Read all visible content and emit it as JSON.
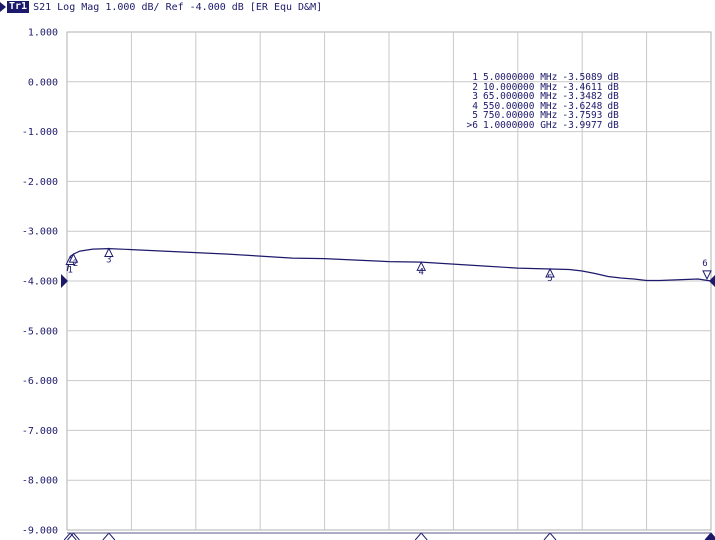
{
  "header": {
    "trace_id": "Tr1",
    "parameter": "S21",
    "format": "Log Mag",
    "scale": "1.000 dB/",
    "reference": "Ref -4.000 dB",
    "mode": "[ER Equ D&M]"
  },
  "colors": {
    "trace": "#1d1a6b",
    "grid": "#c9c9c9",
    "axis_text": "#1d1a6b"
  },
  "marker_table": [
    {
      "id": "1",
      "freq": "5.0000000 MHz",
      "value": "-3.5089",
      "unit": "dB"
    },
    {
      "id": "2",
      "freq": "10.000000 MHz",
      "value": "-3.4611",
      "unit": "dB"
    },
    {
      "id": "3",
      "freq": "65.000000 MHz",
      "value": "-3.3482",
      "unit": "dB"
    },
    {
      "id": "4",
      "freq": "550.00000 MHz",
      "value": "-3.6248",
      "unit": "dB"
    },
    {
      "id": "5",
      "freq": "750.00000 MHz",
      "value": "-3.7593",
      "unit": "dB"
    },
    {
      "id": ">6",
      "freq": "1.0000000 GHz",
      "value": "-3.9977",
      "unit": "dB"
    }
  ],
  "chart_data": {
    "type": "line",
    "title": "S21 Log Mag 1.000 dB/ Ref -4.000 dB [ER Equ D&M]",
    "xlabel": "",
    "ylabel": "",
    "xlim": [
      0,
      1000
    ],
    "ylim": [
      -9,
      1
    ],
    "reference_level": -4.0,
    "yticks": [
      "1.000",
      "0.000",
      "-1.000",
      "-2.000",
      "-3.000",
      "-4.000",
      "-5.000",
      "-6.000",
      "-7.000",
      "-8.000",
      "-9.000"
    ],
    "grid": true,
    "x_divisions": 10,
    "series": [
      {
        "x": [
          0.3,
          5,
          10,
          20,
          40,
          65,
          100,
          150,
          200,
          250,
          300,
          350,
          400,
          450,
          500,
          550,
          600,
          650,
          700,
          750,
          780,
          800,
          820,
          840,
          860,
          880,
          900,
          920,
          940,
          960,
          980,
          1000
        ],
        "y": [
          -3.8,
          -3.51,
          -3.46,
          -3.4,
          -3.36,
          -3.35,
          -3.37,
          -3.4,
          -3.43,
          -3.46,
          -3.5,
          -3.54,
          -3.55,
          -3.58,
          -3.61,
          -3.62,
          -3.66,
          -3.7,
          -3.74,
          -3.76,
          -3.77,
          -3.8,
          -3.85,
          -3.91,
          -3.94,
          -3.96,
          -3.99,
          -3.99,
          -3.98,
          -3.97,
          -3.96,
          -4.0
        ]
      }
    ],
    "markers": [
      {
        "label": "1",
        "x": 5,
        "y": -3.5089
      },
      {
        "label": "2",
        "x": 10,
        "y": -3.4611
      },
      {
        "label": "3",
        "x": 65,
        "y": -3.3482
      },
      {
        "label": "4",
        "x": 550,
        "y": -3.6248
      },
      {
        "label": "5",
        "x": 750,
        "y": -3.7593
      },
      {
        "label": "6",
        "x": 1000,
        "y": -3.9977
      }
    ]
  }
}
